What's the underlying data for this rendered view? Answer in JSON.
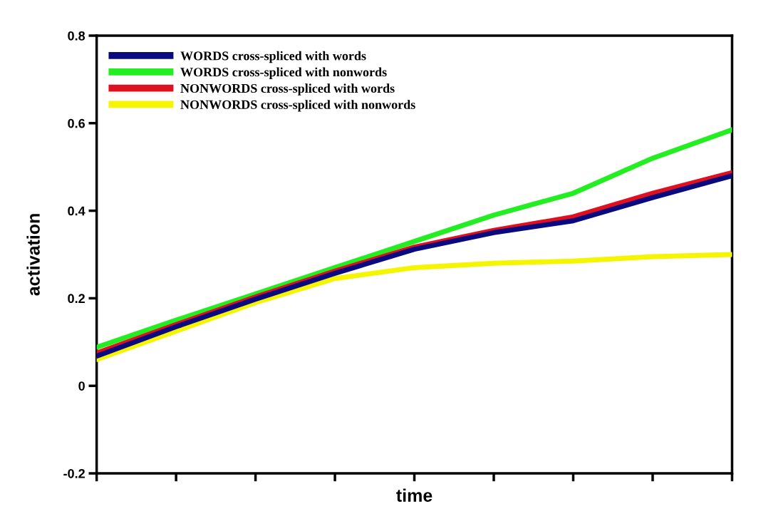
{
  "chart_data": {
    "type": "line",
    "xlabel": "time",
    "ylabel": "activation",
    "categories": [
      null,
      null,
      null,
      null,
      null,
      null,
      null,
      null,
      null
    ],
    "series": [
      {
        "name": "WORDS cross-spliced with words",
        "color": "#0a0a80",
        "values": [
          0.068,
          0.135,
          0.198,
          0.257,
          0.312,
          0.35,
          0.377,
          0.43,
          0.48
        ]
      },
      {
        "name": "WORDS cross-spliced with nonwords",
        "color": "#22ee22",
        "values": [
          0.088,
          0.15,
          0.21,
          0.27,
          0.33,
          0.39,
          0.44,
          0.52,
          0.585
        ]
      },
      {
        "name": "NONWORDS cross-spliced with words",
        "color": "#e01020",
        "values": [
          0.075,
          0.14,
          0.203,
          0.262,
          0.317,
          0.355,
          0.386,
          0.44,
          0.487
        ]
      },
      {
        "name": "NONWORDS cross-spliced with nonwords",
        "color": "#f5f500",
        "values": [
          0.06,
          0.125,
          0.19,
          0.245,
          0.27,
          0.28,
          0.285,
          0.295,
          0.3
        ]
      }
    ],
    "ylim": [
      -0.2,
      0.8
    ],
    "yticks": [
      -0.2,
      0,
      0.2,
      0.4,
      0.6,
      0.8
    ],
    "legend": "top left",
    "grid": false,
    "marker": "none",
    "line_style": "solid"
  }
}
